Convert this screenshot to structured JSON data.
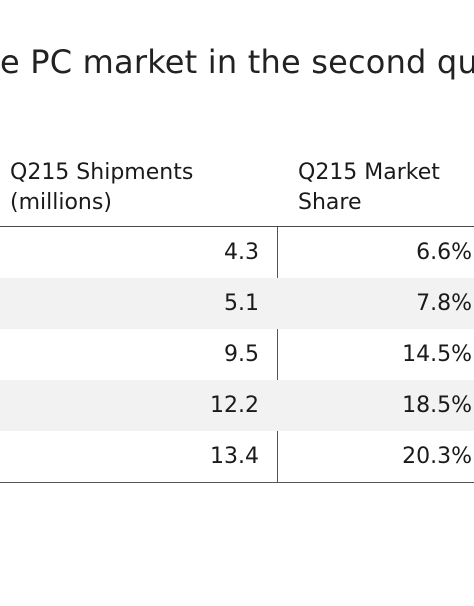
{
  "headline": "e PC market in the second qu",
  "table": {
    "headers": {
      "shipments_line1": "Q215 Shipments",
      "shipments_line2": "(millions)",
      "share_line1": "Q215 Market",
      "share_line2": "Share"
    },
    "rows": [
      {
        "shipments": "4.3",
        "share": "6.6%"
      },
      {
        "shipments": "5.1",
        "share": "7.8%"
      },
      {
        "shipments": "9.5",
        "share": "14.5%"
      },
      {
        "shipments": "12.2",
        "share": "18.5%"
      },
      {
        "shipments": "13.4",
        "share": "20.3%"
      }
    ]
  }
}
